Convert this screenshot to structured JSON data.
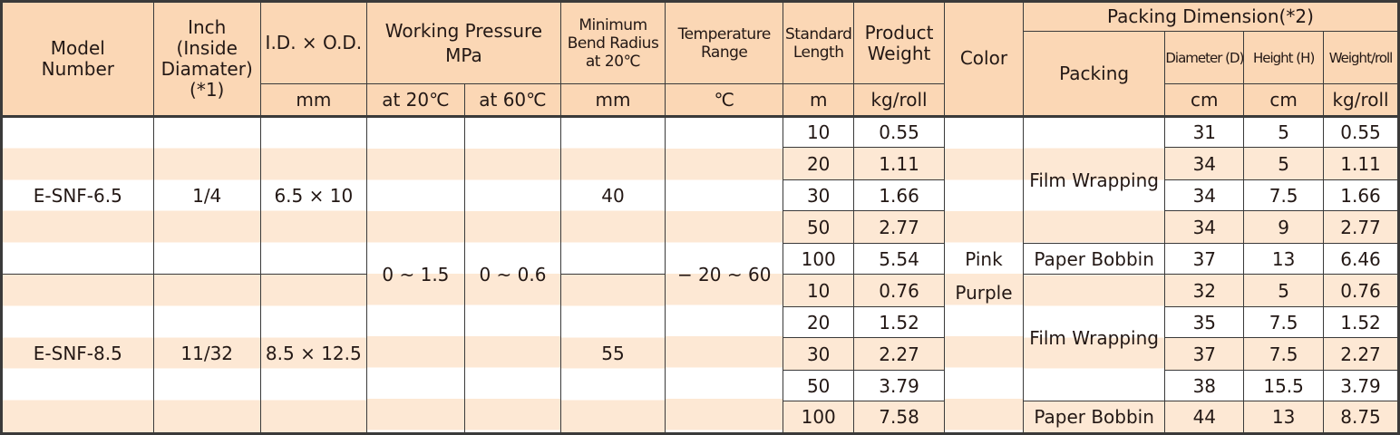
{
  "headers": {
    "model": [
      "Model",
      "Number"
    ],
    "inch": [
      "Inch",
      "(Inside",
      "Diamater)",
      "(*1)"
    ],
    "id_od": "I.D. × O.D.",
    "id_od_unit": "mm",
    "wp": [
      "Working Pressure",
      "MPa"
    ],
    "wp_20": "at 20℃",
    "wp_60": "at 60℃",
    "bend": [
      "Minimum",
      "Bend Radius",
      "at 20℃"
    ],
    "bend_unit": "mm",
    "temp": [
      "Temperature",
      "Range"
    ],
    "temp_unit": "℃",
    "length": [
      "Standard",
      "Length"
    ],
    "length_unit": "m",
    "weight": [
      "Product",
      "Weight"
    ],
    "weight_unit": "kg/roll",
    "color": "Color",
    "packing_dim": "Packing Dimension(*2)",
    "packing": "Packing",
    "diameter": "Diameter (D)",
    "diameter_unit": "cm",
    "height": "Height  (H)",
    "height_unit": "cm",
    "pweight": "Weight/roll",
    "pweight_unit": "kg/roll"
  },
  "groups": [
    {
      "model": "E-SNF-6.5",
      "inch": "1/4",
      "id_od": "6.5 × 10",
      "bend": "40",
      "packing_film": "Film Wrapping",
      "packing_bobbin": "Paper Bobbin"
    },
    {
      "model": "E-SNF-8.5",
      "inch": "11/32",
      "id_od": "8.5 × 12.5",
      "bend": "55",
      "packing_film": "Film Wrapping",
      "packing_bobbin": "Paper Bobbin"
    }
  ],
  "shared": {
    "wp_20": "0 ~ 1.5",
    "wp_60": "0 ~ 0.6",
    "temp": "− 20 ~ 60",
    "color": [
      "Pink",
      "Purple"
    ]
  },
  "rows": [
    {
      "length": "10",
      "weight": "0.55",
      "d": "31",
      "h": "5",
      "w": "0.55"
    },
    {
      "length": "20",
      "weight": "1.11",
      "d": "34",
      "h": "5",
      "w": "1.11"
    },
    {
      "length": "30",
      "weight": "1.66",
      "d": "34",
      "h": "7.5",
      "w": "1.66"
    },
    {
      "length": "50",
      "weight": "2.77",
      "d": "34",
      "h": "9",
      "w": "2.77"
    },
    {
      "length": "100",
      "weight": "5.54",
      "d": "37",
      "h": "13",
      "w": "6.46"
    },
    {
      "length": "10",
      "weight": "0.76",
      "d": "32",
      "h": "5",
      "w": "0.76"
    },
    {
      "length": "20",
      "weight": "1.52",
      "d": "35",
      "h": "7.5",
      "w": "1.52"
    },
    {
      "length": "30",
      "weight": "2.27",
      "d": "37",
      "h": "7.5",
      "w": "2.27"
    },
    {
      "length": "50",
      "weight": "3.79",
      "d": "38",
      "h": "15.5",
      "w": "3.79"
    },
    {
      "length": "100",
      "weight": "7.58",
      "d": "44",
      "h": "13",
      "w": "8.75"
    }
  ]
}
